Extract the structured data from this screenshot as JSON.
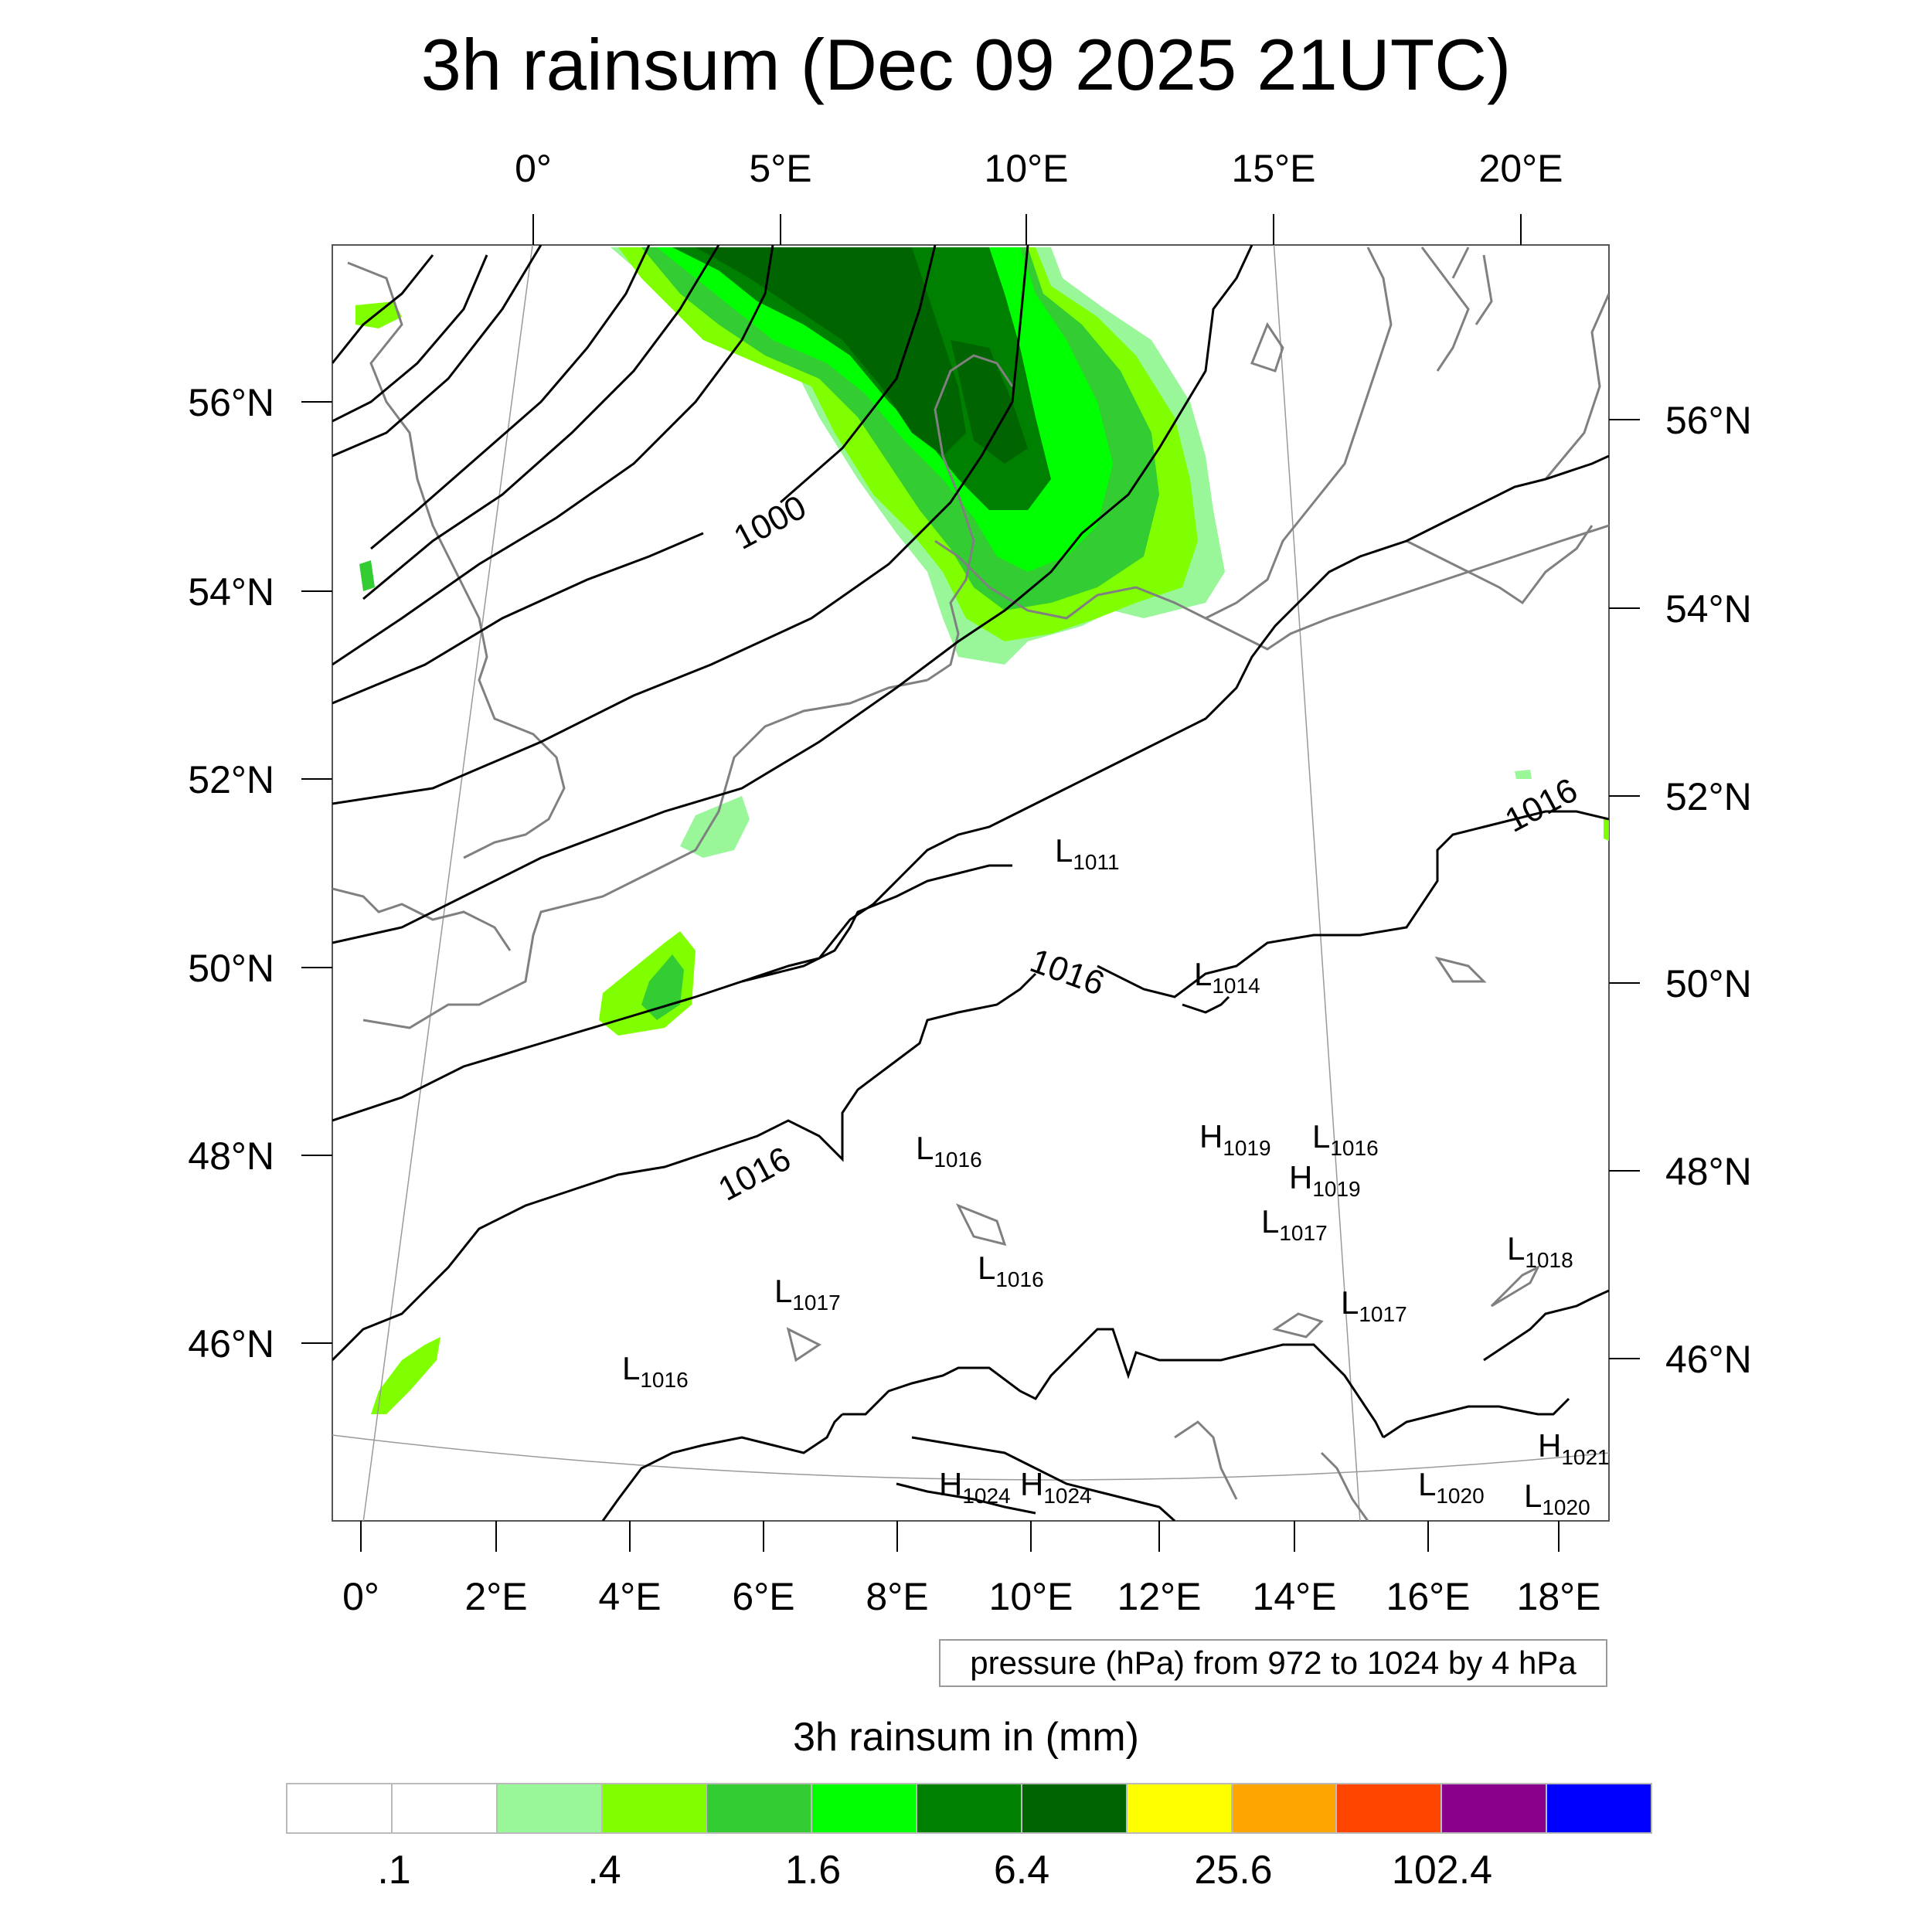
{
  "title": "3h rainsum (Dec 09 2025 21UTC)",
  "map": {
    "top_lon_labels": [
      "0°",
      "5°E",
      "10°E",
      "15°E",
      "20°E"
    ],
    "bottom_lon_labels": [
      "0°",
      "2°E",
      "4°E",
      "6°E",
      "8°E",
      "10°E",
      "12°E",
      "14°E",
      "16°E",
      "18°E"
    ],
    "left_lat_labels": [
      "56°N",
      "54°N",
      "52°N",
      "50°N",
      "48°N",
      "46°N"
    ],
    "right_lat_labels": [
      "56°N",
      "54°N",
      "52°N",
      "50°N",
      "48°N",
      "46°N"
    ],
    "isobar_labels": [
      "1000",
      "1016",
      "1016",
      "1016"
    ],
    "pressure_centers": [
      {
        "letter": "L",
        "value": "1011"
      },
      {
        "letter": "L",
        "value": "1014"
      },
      {
        "letter": "L",
        "value": "1016"
      },
      {
        "letter": "H",
        "value": "1019"
      },
      {
        "letter": "L",
        "value": "1016"
      },
      {
        "letter": "H",
        "value": "1019"
      },
      {
        "letter": "L",
        "value": "1017"
      },
      {
        "letter": "L",
        "value": "1016"
      },
      {
        "letter": "L",
        "value": "1017"
      },
      {
        "letter": "L",
        "value": "1017"
      },
      {
        "letter": "L",
        "value": "1018"
      },
      {
        "letter": "L",
        "value": "1016"
      },
      {
        "letter": "H",
        "value": "1021"
      },
      {
        "letter": "H",
        "value": "1024"
      },
      {
        "letter": "H",
        "value": "1024"
      },
      {
        "letter": "L",
        "value": "1020"
      },
      {
        "letter": "L",
        "value": "1020"
      }
    ],
    "rain_colors": {
      "light": "#99f799",
      "yellowgreen": "#80ff00",
      "mid": "#33cc33",
      "bright": "#00ff00",
      "dark": "#008000",
      "darkest": "#006400"
    },
    "coast_color": "#808080",
    "isobar_color": "#000000"
  },
  "info_box": "pressure (hPa) from 972 to 1024 by 4 hPa",
  "colorbar": {
    "title": "3h rainsum in (mm)",
    "colors": [
      "#ffffff",
      "#ffffff",
      "#99f799",
      "#80ff00",
      "#33cc33",
      "#00ff00",
      "#008000",
      "#006400",
      "#ffff00",
      "#ffa500",
      "#ff4500",
      "#8b008b",
      "#0000ff"
    ],
    "tick_labels": [
      ".1",
      ".4",
      "1.6",
      "6.4",
      "25.6",
      "102.4"
    ]
  }
}
